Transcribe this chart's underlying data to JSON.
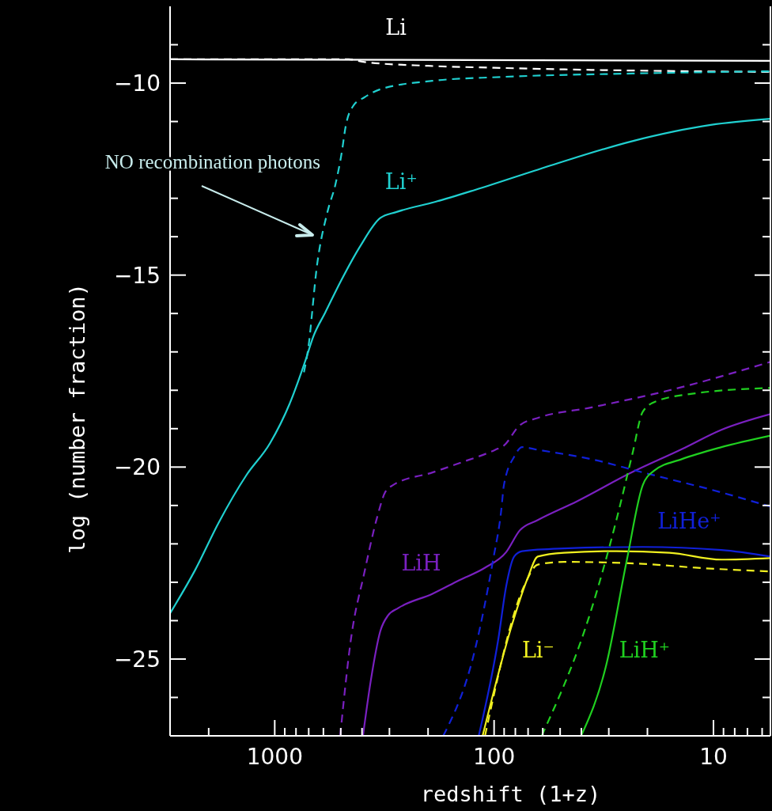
{
  "chart_data": {
    "type": "line",
    "xlabel": "redshift (1+z)",
    "ylabel": "log (number fraction)",
    "log": "x",
    "xlim": [
      3000,
      5.5
    ],
    "ylim": [
      -27,
      -8
    ],
    "xticks": [
      {
        "value": 2000,
        "label": null
      },
      1000,
      {
        "value": 900,
        "label": null
      },
      {
        "value": 800,
        "label": null
      },
      {
        "value": 700,
        "label": null
      },
      {
        "value": 600,
        "label": null
      },
      {
        "value": 500,
        "label": null
      },
      {
        "value": 400,
        "label": null
      },
      {
        "value": 300,
        "label": null
      },
      {
        "value": 200,
        "label": null
      },
      100,
      {
        "value": 90,
        "label": null
      },
      {
        "value": 80,
        "label": null
      },
      {
        "value": 70,
        "label": null
      },
      {
        "value": 60,
        "label": null
      },
      {
        "value": 50,
        "label": null
      },
      {
        "value": 40,
        "label": null
      },
      {
        "value": 30,
        "label": null
      },
      {
        "value": 20,
        "label": null
      },
      10,
      {
        "value": 9,
        "label": null
      },
      {
        "value": 8,
        "label": null
      },
      {
        "value": 7,
        "label": null
      },
      {
        "value": 6,
        "label": null
      }
    ],
    "yticks": [
      {
        "value": -9,
        "label": null
      },
      -10,
      {
        "value": -11,
        "label": null
      },
      {
        "value": -12,
        "label": null
      },
      {
        "value": -13,
        "label": null
      },
      {
        "value": -14,
        "label": null
      },
      -15,
      {
        "value": -16,
        "label": null
      },
      {
        "value": -17,
        "label": null
      },
      {
        "value": -18,
        "label": null
      },
      {
        "value": -19,
        "label": null
      },
      -20,
      {
        "value": -21,
        "label": null
      },
      {
        "value": -22,
        "label": null
      },
      {
        "value": -23,
        "label": null
      },
      {
        "value": -24,
        "label": null
      },
      -25,
      {
        "value": -26,
        "label": null
      }
    ],
    "annotations": [
      "NO recombination photons"
    ],
    "series": [
      {
        "name": "Li",
        "color": "#ffffff",
        "line_style": "solid",
        "x": [
          3000,
          5.5
        ],
        "values": [
          -9.38,
          -9.42
        ]
      },
      {
        "color": "#ffffff",
        "line_style": "dashed",
        "x": [
          3000,
          460,
          390,
          200,
          100,
          40,
          5.5
        ],
        "values": [
          -9.38,
          -9.38,
          -9.45,
          -9.55,
          -9.6,
          -9.65,
          -9.71
        ]
      },
      {
        "name": "Li⁺",
        "color": "#20d0d0",
        "line_style": "solid",
        "x": [
          3000,
          2305,
          1798,
          1346,
          1051,
          855,
          724,
          667,
          589,
          499,
          406,
          330,
          280,
          185,
          122,
          53.5,
          23.4,
          10.3,
          5.5
        ],
        "values": [
          -23.81,
          -22.68,
          -21.44,
          -20.21,
          -19.38,
          -18.35,
          -17.22,
          -16.6,
          -15.98,
          -15.15,
          -14.23,
          -13.51,
          -13.36,
          -13.09,
          -12.78,
          -12.12,
          -11.51,
          -11.09,
          -10.93
        ]
      },
      {
        "color": "#20d0d0",
        "line_style": "dashed",
        "x": [
          736,
          706,
          640,
          574,
          529,
          495,
          475,
          437,
          390,
          330,
          191,
          93,
          23.4,
          5.5
        ],
        "values": [
          -17.53,
          -16.97,
          -14.7,
          -13.34,
          -12.64,
          -11.81,
          -11.13,
          -10.58,
          -10.37,
          -10.16,
          -9.94,
          -9.84,
          -9.75,
          -9.69
        ]
      },
      {
        "name": "LiH",
        "color": "#7a20c0",
        "line_style": "solid",
        "x": [
          396,
          365,
          330,
          304,
          273,
          191,
          144.5,
          110,
          88,
          76.4,
          63.2,
          41.8,
          24,
          13.9,
          9.2,
          5.5
        ],
        "values": [
          -27,
          -25.57,
          -24.27,
          -23.86,
          -23.67,
          -23.3,
          -22.95,
          -22.62,
          -22.21,
          -21.65,
          -21.38,
          -20.89,
          -20.16,
          -19.53,
          -19.03,
          -18.62
        ]
      },
      {
        "color": "#7a20c0",
        "line_style": "dashed",
        "x": [
          503,
          449,
          390,
          341,
          314,
          289,
          191,
          144.5,
          98.8,
          90.2,
          76.4,
          63.2,
          36.3,
          15.9,
          5.5
        ],
        "values": [
          -27,
          -24.47,
          -22.74,
          -21.3,
          -20.66,
          -20.47,
          -20.14,
          -19.9,
          -19.55,
          -19.44,
          -18.91,
          -18.72,
          -18.45,
          -18,
          -17.26
        ]
      },
      {
        "name": "LiHe⁺",
        "color": "#1020d8",
        "line_style": "solid",
        "x": [
          117.5,
          95.6,
          88,
          81,
          74.5,
          48,
          21,
          9.2,
          5.5
        ],
        "values": [
          -27,
          -24.47,
          -23.09,
          -22.33,
          -22.19,
          -22.12,
          -22.08,
          -22.16,
          -22.33
        ]
      },
      {
        "color": "#1020d8",
        "line_style": "dashed",
        "x": [
          170.5,
          122,
          101,
          93,
          90.2,
          81,
          74.5,
          63.2,
          36.3,
          21,
          9.2,
          5.5
        ],
        "values": [
          -27,
          -24.74,
          -22.41,
          -21.18,
          -20.47,
          -19.73,
          -19.48,
          -19.55,
          -19.79,
          -20.14,
          -20.66,
          -21.03
        ]
      },
      {
        "name": "Li⁻",
        "color": "#f0f020",
        "line_style": "solid",
        "x": [
          112.8,
          83,
          70.3,
          63.2,
          48,
          27.7,
          15.9,
          9.2,
          5.5
        ],
        "values": [
          -27,
          -24.12,
          -22.89,
          -22.33,
          -22.23,
          -22.19,
          -22.23,
          -22.41,
          -22.37
        ]
      },
      {
        "color": "#f0f020",
        "line_style": "dashed",
        "x": [
          110,
          72.8,
          63.2,
          48,
          21,
          12.1,
          5.5
        ],
        "values": [
          -27,
          -23.09,
          -22.54,
          -22.47,
          -22.52,
          -22.62,
          -22.72
        ]
      },
      {
        "name": "LiH⁺",
        "color": "#20d020",
        "line_style": "solid",
        "x": [
          40.1,
          30.8,
          24.8,
          21,
          18.7,
          13.9,
          9.2,
          5.5
        ],
        "values": [
          -27,
          -25.15,
          -22.41,
          -20.47,
          -20.1,
          -19.79,
          -19.48,
          -19.18
        ]
      },
      {
        "color": "#20d020",
        "line_style": "dashed",
        "x": [
          60.7,
          36.3,
          27.7,
          23.4,
          21,
          18.3,
          12.1,
          5.5
        ],
        "values": [
          -27,
          -23.77,
          -21.38,
          -19.65,
          -18.56,
          -18.29,
          -18.08,
          -17.94
        ]
      }
    ]
  }
}
